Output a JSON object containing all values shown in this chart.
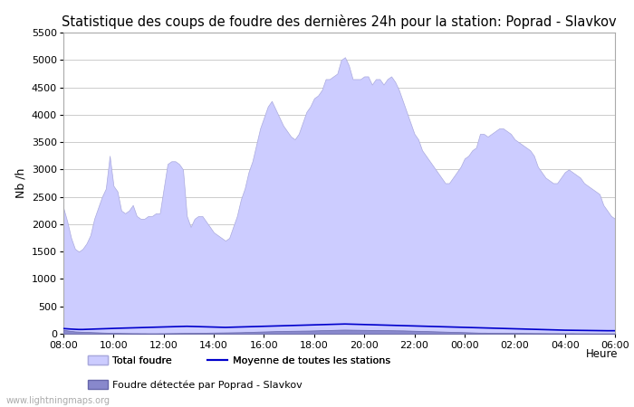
{
  "title": "Statistique des coups de foudre des dernières 24h pour la station: Poprad - Slavkov",
  "xlabel": "Heure",
  "ylabel": "Nb /h",
  "ylim": [
    0,
    5500
  ],
  "yticks": [
    0,
    500,
    1000,
    1500,
    2000,
    2500,
    3000,
    3500,
    4000,
    4500,
    5000,
    5500
  ],
  "xtick_labels": [
    "08:00",
    "10:00",
    "12:00",
    "14:00",
    "16:00",
    "18:00",
    "20:00",
    "22:00",
    "00:00",
    "02:00",
    "04:00",
    "06:00"
  ],
  "background_color": "#ffffff",
  "plot_bg_color": "#ffffff",
  "grid_color": "#cccccc",
  "title_fontsize": 10.5,
  "total_foudre_color": "#ccccff",
  "total_foudre_edge": "#aaaadd",
  "detected_color": "#8888cc",
  "detected_edge": "#6666aa",
  "mean_line_color": "#0000cc",
  "watermark": "www.lightningmaps.org",
  "total_foudre_y": [
    2300,
    2050,
    1750,
    1550,
    1500,
    1550,
    1650,
    1800,
    2100,
    2300,
    2500,
    2650,
    3250,
    2700,
    2600,
    2250,
    2200,
    2250,
    2350,
    2150,
    2100,
    2100,
    2150,
    2150,
    2200,
    2200,
    2650,
    3100,
    3150,
    3150,
    3100,
    3000,
    2150,
    1950,
    2100,
    2150,
    2150,
    2050,
    1950,
    1850,
    1800,
    1750,
    1700,
    1750,
    1950,
    2150,
    2450,
    2650,
    2950,
    3150,
    3450,
    3750,
    3950,
    4150,
    4250,
    4100,
    3950,
    3800,
    3700,
    3600,
    3550,
    3650,
    3850,
    4050,
    4150,
    4300,
    4350,
    4450,
    4650,
    4650,
    4700,
    4750,
    5000,
    5050,
    4900,
    4650,
    4650,
    4650,
    4700,
    4700,
    4550,
    4650,
    4650,
    4550,
    4650,
    4700,
    4600,
    4450,
    4250,
    4050,
    3850,
    3650,
    3550,
    3350,
    3250,
    3150,
    3050,
    2950,
    2850,
    2750,
    2750,
    2850,
    2950,
    3050,
    3200,
    3250,
    3350,
    3400,
    3650,
    3650,
    3600,
    3650,
    3700,
    3750,
    3750,
    3700,
    3650,
    3550,
    3500,
    3450,
    3400,
    3350,
    3250,
    3050,
    2950,
    2850,
    2800,
    2750,
    2750,
    2850,
    2950,
    3000,
    2950,
    2900,
    2850,
    2750,
    2700,
    2650,
    2600,
    2550,
    2350,
    2250,
    2150,
    2100
  ],
  "detected_y": [
    70,
    60,
    50,
    42,
    38,
    35,
    32,
    30,
    27,
    25,
    22,
    20,
    18,
    16,
    15,
    13,
    12,
    11,
    10,
    10,
    9,
    9,
    8,
    8,
    8,
    9,
    9,
    10,
    11,
    12,
    13,
    14,
    15,
    16,
    17,
    18,
    18,
    19,
    20,
    21,
    22,
    23,
    24,
    25,
    26,
    27,
    28,
    30,
    32,
    35,
    37,
    39,
    41,
    43,
    45,
    47,
    49,
    51,
    52,
    53,
    54,
    55,
    56,
    57,
    58,
    60,
    62,
    64,
    66,
    68,
    70,
    72,
    74,
    75,
    74,
    73,
    72,
    71,
    70,
    69,
    68,
    67,
    66,
    65,
    64,
    63,
    62,
    61,
    60,
    58,
    56,
    54,
    52,
    50,
    48,
    46,
    44,
    42,
    40,
    38,
    36,
    34,
    32,
    30,
    28,
    26,
    24,
    22,
    20,
    20,
    19,
    18,
    18,
    17,
    16,
    16,
    15,
    15,
    14,
    14,
    13,
    13,
    12,
    12,
    11,
    11,
    10,
    10,
    10,
    9,
    9,
    9,
    9,
    8,
    8,
    8,
    8,
    7,
    7,
    7,
    7,
    7,
    7,
    7
  ],
  "mean_line_y": [
    95,
    90,
    85,
    82,
    78,
    78,
    80,
    83,
    86,
    88,
    90,
    93,
    95,
    98,
    100,
    102,
    104,
    106,
    108,
    110,
    112,
    114,
    116,
    118,
    120,
    122,
    124,
    126,
    128,
    130,
    132,
    134,
    136,
    134,
    132,
    130,
    128,
    126,
    124,
    122,
    120,
    118,
    116,
    118,
    120,
    122,
    124,
    126,
    128,
    130,
    132,
    134,
    136,
    138,
    140,
    142,
    144,
    146,
    148,
    150,
    152,
    154,
    156,
    158,
    160,
    162,
    164,
    166,
    168,
    170,
    172,
    174,
    176,
    178,
    176,
    174,
    172,
    170,
    168,
    166,
    164,
    162,
    160,
    158,
    156,
    154,
    152,
    150,
    148,
    146,
    144,
    142,
    140,
    138,
    136,
    134,
    132,
    130,
    128,
    126,
    124,
    122,
    120,
    118,
    116,
    114,
    112,
    110,
    108,
    106,
    104,
    102,
    100,
    98,
    96,
    94,
    92,
    90,
    88,
    86,
    84,
    82,
    80,
    78,
    76,
    74,
    72,
    70,
    68,
    66,
    65,
    64,
    63,
    62,
    61,
    60,
    59,
    58,
    57,
    56,
    55,
    55,
    55,
    55
  ]
}
